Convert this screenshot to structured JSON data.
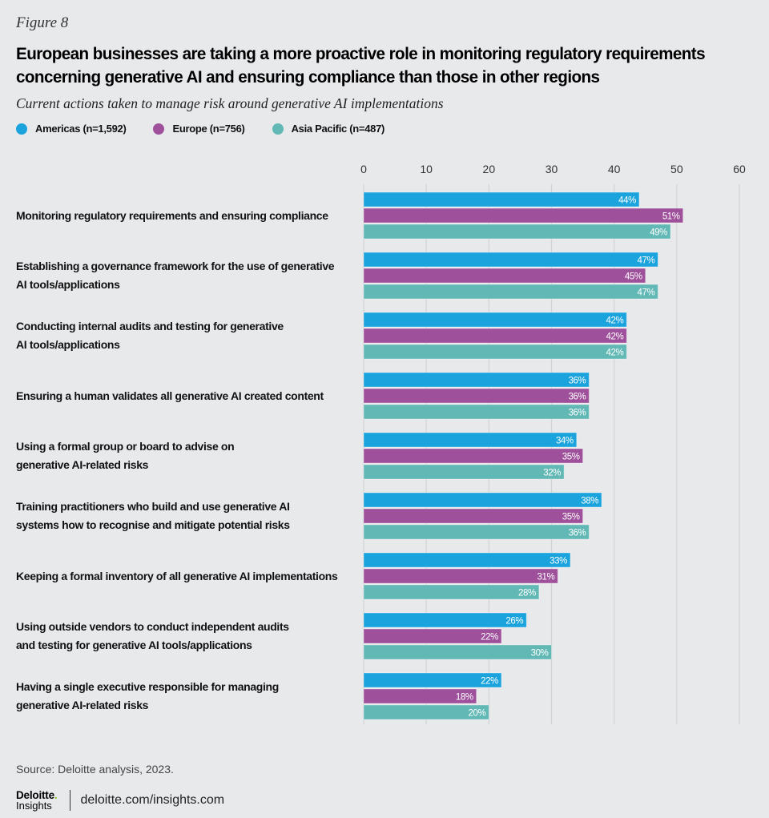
{
  "figure_label": "Figure 8",
  "title": "European businesses are taking a more proactive role in monitoring regulatory requirements concerning generative AI and ensuring compliance than those in other regions",
  "subtitle": "Current actions taken to manage risk around generative AI implementations",
  "colors": {
    "americas": "#1aa3dc",
    "europe": "#9e509b",
    "asia_pacific": "#61b8b5",
    "gridline": "#d2d3d5",
    "bar_label": "#ffffff"
  },
  "legend": [
    {
      "label": "Americas (n=1,592)",
      "color": "#1aa3dc"
    },
    {
      "label": "Europe (n=756)",
      "color": "#9e509b"
    },
    {
      "label": "Asia Pacific (n=487)",
      "color": "#61b8b5"
    }
  ],
  "chart_data": {
    "type": "bar",
    "orientation": "horizontal",
    "title": "European businesses are taking a more proactive role in monitoring regulatory requirements concerning generative AI and ensuring compliance than those in other regions",
    "subtitle": "Current actions taken to manage risk around generative AI implementations",
    "xlabel": "",
    "ylabel": "",
    "xlim": [
      0,
      60
    ],
    "x_ticks": [
      0,
      10,
      20,
      30,
      40,
      50,
      60
    ],
    "x_tick_labels": [
      "0",
      "10",
      "20",
      "30",
      "40",
      "50",
      "60"
    ],
    "grid": true,
    "legend_position": "top-left",
    "value_suffix": "%",
    "categories": [
      [
        "Monitoring regulatory requirements and ensuring compliance"
      ],
      [
        "Establishing a governance framework for the use of generative",
        "AI tools/applications"
      ],
      [
        "Conducting internal audits and testing for generative",
        "AI tools/applications"
      ],
      [
        "Ensuring a human validates all generative AI created content"
      ],
      [
        "Using a formal group or board to advise on",
        "generative AI-related risks"
      ],
      [
        "Training practitioners who build and use generative AI",
        "systems how to recognise and mitigate potential risks"
      ],
      [
        "Keeping a formal inventory of all generative AI implementations"
      ],
      [
        "Using outside vendors to conduct independent audits",
        "and testing for generative AI tools/applications"
      ],
      [
        "Having a single executive responsible for managing",
        "generative AI-related risks"
      ]
    ],
    "series": [
      {
        "name": "Americas (n=1,592)",
        "color": "#1aa3dc",
        "values": [
          44,
          47,
          42,
          36,
          34,
          38,
          33,
          26,
          22
        ]
      },
      {
        "name": "Europe (n=756)",
        "color": "#9e509b",
        "values": [
          51,
          45,
          42,
          36,
          35,
          35,
          31,
          22,
          18
        ]
      },
      {
        "name": "Asia Pacific (n=487)",
        "color": "#61b8b5",
        "values": [
          49,
          47,
          42,
          36,
          32,
          36,
          28,
          30,
          20
        ]
      }
    ]
  },
  "source": "Source: Deloitte analysis, 2023.",
  "footer": {
    "logo_top": "Deloitte",
    "logo_dot": ".",
    "logo_bottom": "Insights",
    "url": "deloitte.com/insights.com"
  }
}
